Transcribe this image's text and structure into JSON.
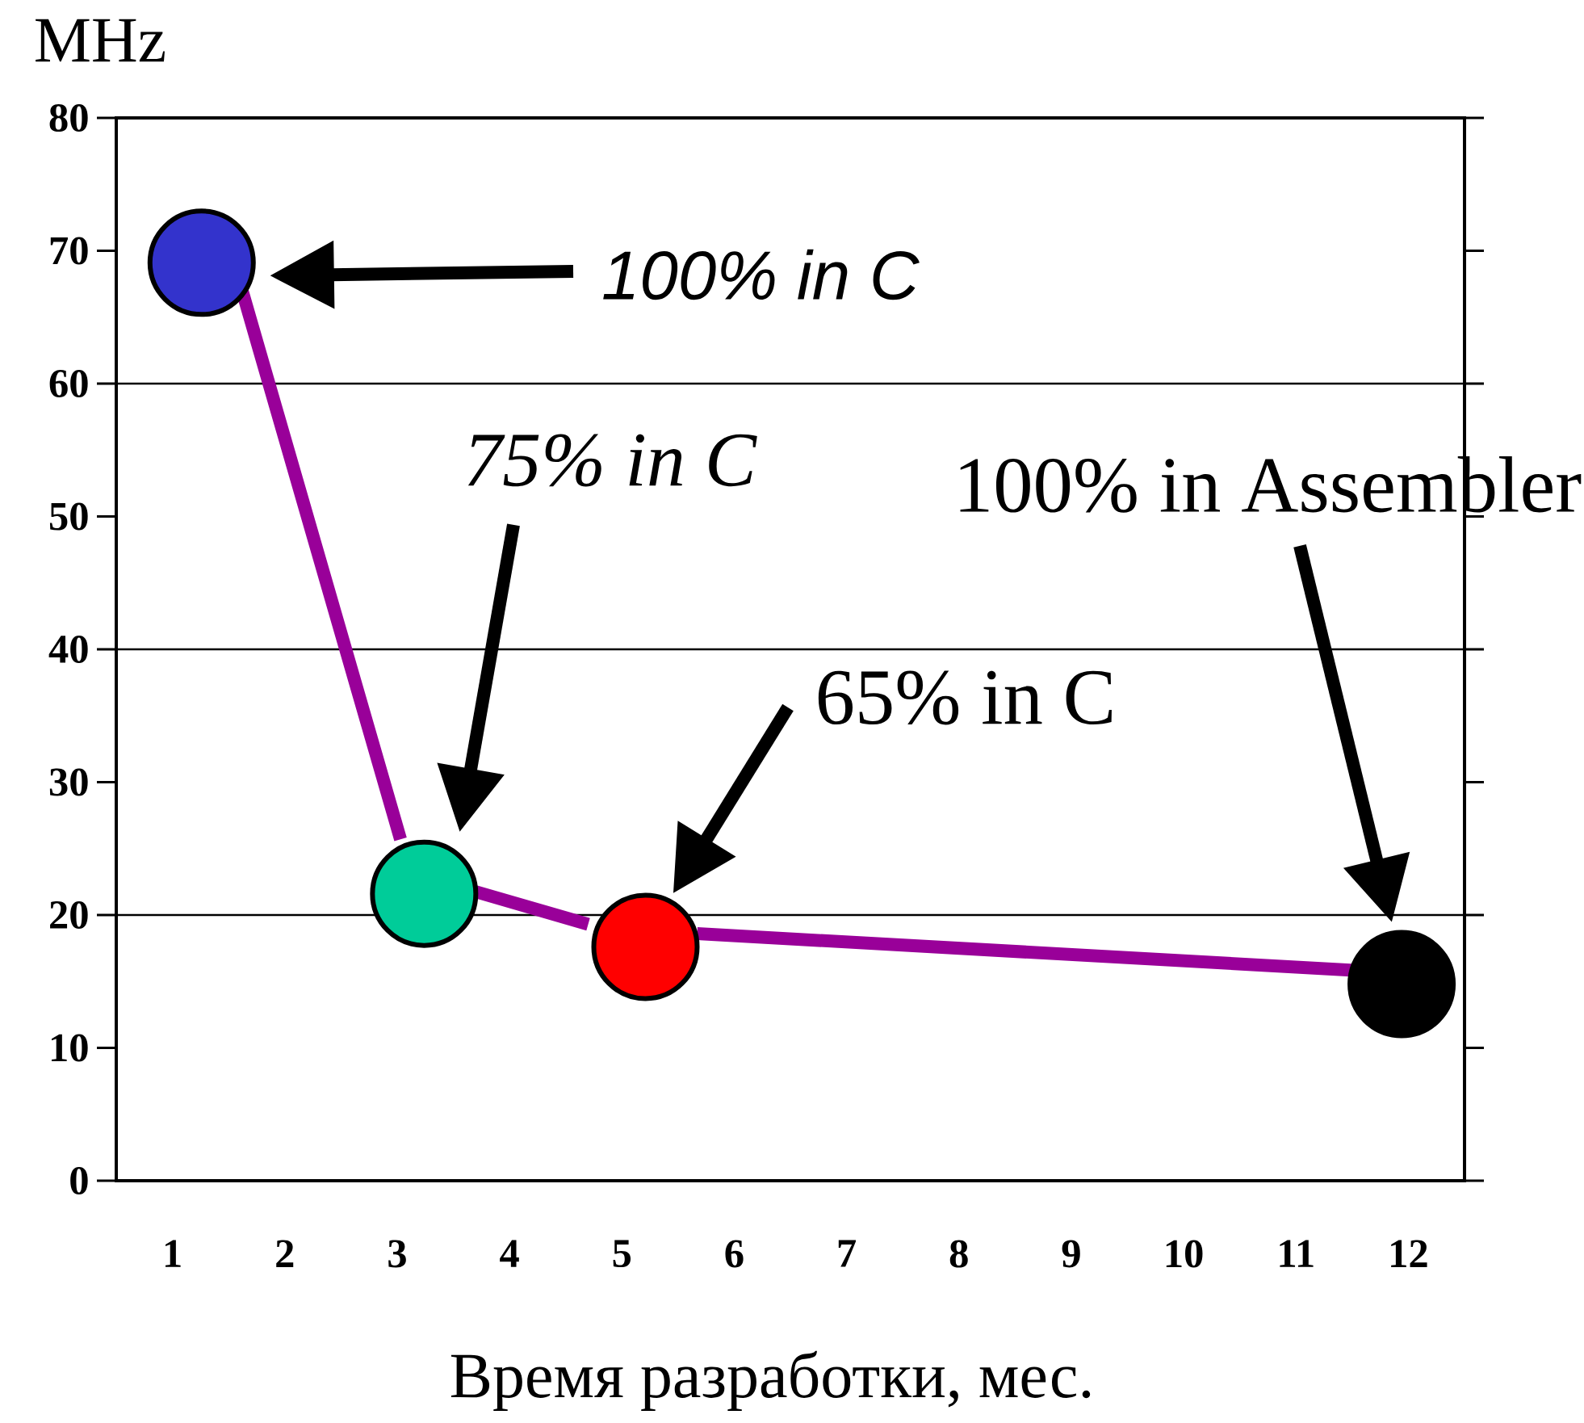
{
  "chart_data": {
    "type": "line",
    "xlabel": "Время разработки, мес.",
    "ylabel": "MHz",
    "xlim": [
      0.5,
      12.5
    ],
    "xticks": [
      1,
      2,
      3,
      4,
      5,
      6,
      7,
      8,
      9,
      10,
      11,
      12
    ],
    "ylim": [
      0,
      80
    ],
    "yticks": [
      0,
      10,
      20,
      30,
      40,
      50,
      60,
      70,
      80
    ],
    "grid": "y",
    "series": [
      {
        "color": "#990099",
        "marker": "none",
        "x": [
          1.62,
          3.03,
          3.3,
          3.68,
          4.7,
          5.3,
          5.67,
          11.58
        ],
        "values": [
          67.0,
          25.7,
          null,
          21.8,
          19.3,
          null,
          18.6,
          15.8
        ]
      },
      {
        "type": "scatter",
        "marker": "circle",
        "colors": [
          "#3333cc",
          "#00cc99",
          "#ff0000",
          "#000000"
        ],
        "x": [
          1.26,
          3.24,
          5.21,
          11.94
        ],
        "values": [
          69.1,
          21.6,
          17.6,
          14.8
        ]
      }
    ],
    "annotations": [
      "*100% in C*",
      "*75% in C*",
      "65% in C",
      "100% in Assembler"
    ]
  }
}
